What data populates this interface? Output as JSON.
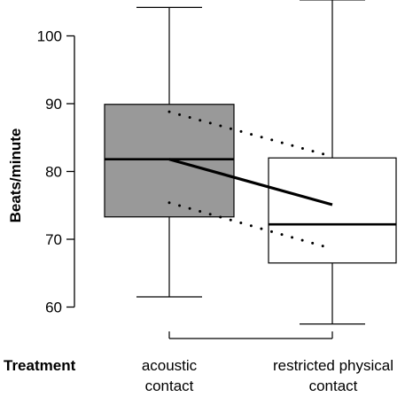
{
  "chart_data": {
    "type": "boxplot",
    "ylabel": "Beats/minute",
    "ylim": [
      60,
      105
    ],
    "y_ticks": [
      60,
      70,
      80,
      90,
      100
    ],
    "grouping_label": "Treatment",
    "groups": [
      {
        "name_lines": [
          "acoustic",
          "contact"
        ],
        "fill": "#999999",
        "whisker_low": 61.5,
        "q1": 73.3,
        "median": 81.8,
        "q3": 89.9,
        "whisker_high": 104.2
      },
      {
        "name_lines": [
          "restricted physical",
          "contact"
        ],
        "fill": "#ffffff",
        "whisker_low": 57.5,
        "q1": 66.5,
        "median": 72.2,
        "q3": 82.0,
        "whisker_high": 105.3
      }
    ],
    "mean_line": {
      "values": [
        81.8,
        75.1
      ]
    },
    "ci_upper": {
      "values": [
        88.8,
        82.2
      ]
    },
    "ci_lower": {
      "values": [
        75.4,
        68.6
      ]
    },
    "colors": {
      "box_fill_group1": "#999999",
      "box_fill_group2": "#ffffff",
      "stroke": "#000000"
    }
  }
}
